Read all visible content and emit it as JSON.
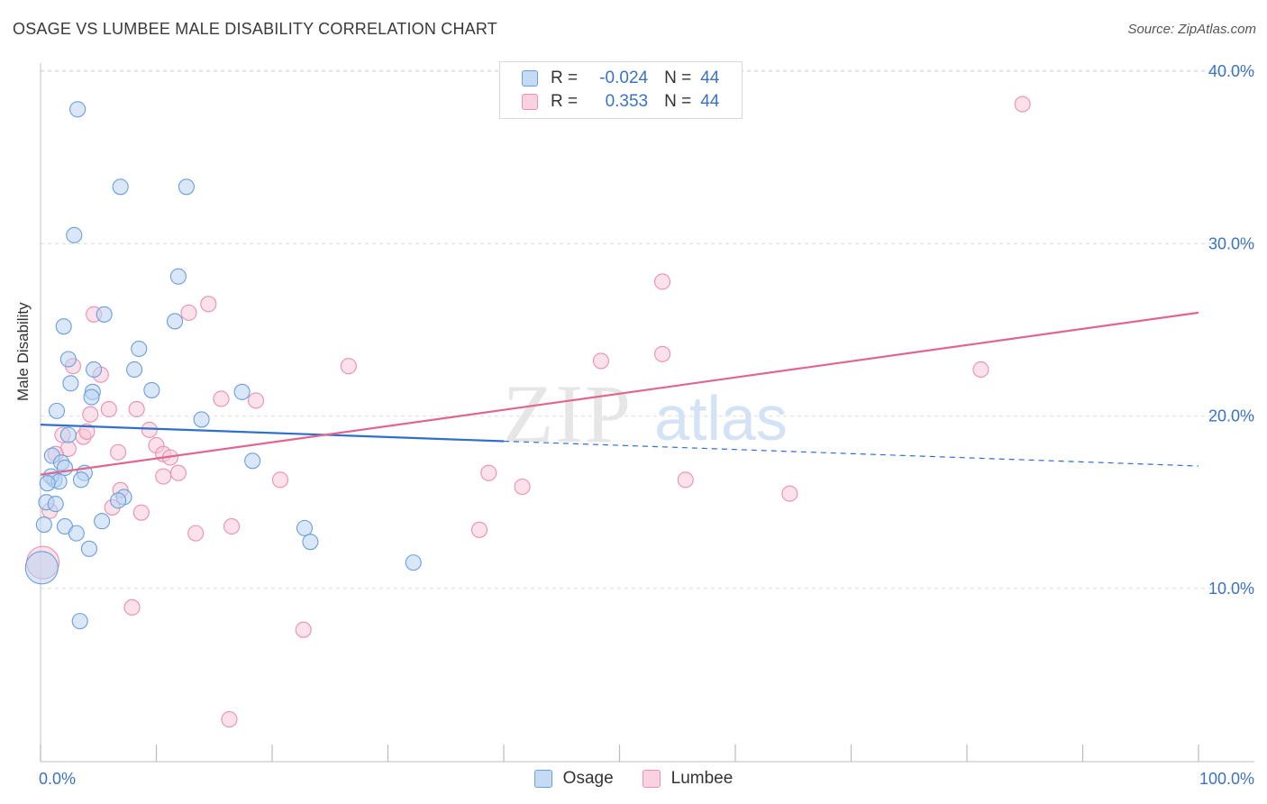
{
  "title": "OSAGE VS LUMBEE MALE DISABILITY CORRELATION CHART",
  "source": "Source: ZipAtlas.com",
  "watermark": {
    "zip": "ZIP",
    "atlas": "atlas"
  },
  "legend": {
    "rows": [
      {
        "r_label": "R =",
        "r_value": "-0.024",
        "n_label": "N =",
        "n_value": "44"
      },
      {
        "r_label": "R =",
        "r_value": "0.353",
        "n_label": "N =",
        "n_value": "44"
      }
    ]
  },
  "colors": {
    "osage_fill": "#b9d3f2",
    "osage_stroke": "#6a9fdc",
    "osage_line": "#2f6fcf",
    "lumbee_fill": "#f8c8d8",
    "lumbee_stroke": "#ec8fae",
    "lumbee_line": "#e06690",
    "tick_label": "#3b73c4",
    "grid": "#dddddd"
  },
  "chart_data": {
    "type": "scatter",
    "xlabel": "",
    "ylabel": "Male Disability",
    "xlim": [
      0,
      100
    ],
    "ylim": [
      0,
      40
    ],
    "x_tick_labels": [
      {
        "value": 0,
        "label": "0.0%"
      },
      {
        "value": 100,
        "label": "100.0%"
      }
    ],
    "y_tick_labels": [
      {
        "value": 10,
        "label": "10.0%"
      },
      {
        "value": 20,
        "label": "20.0%"
      },
      {
        "value": 30,
        "label": "30.0%"
      },
      {
        "value": 40,
        "label": "40.0%"
      }
    ],
    "grid": true,
    "legend_position": "top-center",
    "series": [
      {
        "name": "Osage",
        "trend": {
          "x0": 0,
          "y0": 19.5,
          "x1": 100,
          "y1": 17.1,
          "solid_until": 40
        },
        "points": [
          [
            3.2,
            37.8
          ],
          [
            6.9,
            33.3
          ],
          [
            12.6,
            33.3
          ],
          [
            2.9,
            30.5
          ],
          [
            11.9,
            28.1
          ],
          [
            5.5,
            25.9
          ],
          [
            2.0,
            25.2
          ],
          [
            11.6,
            25.5
          ],
          [
            8.5,
            23.9
          ],
          [
            2.4,
            23.3
          ],
          [
            8.1,
            22.7
          ],
          [
            4.6,
            22.7
          ],
          [
            2.6,
            21.9
          ],
          [
            9.6,
            21.5
          ],
          [
            17.4,
            21.4
          ],
          [
            4.5,
            21.4
          ],
          [
            4.4,
            21.1
          ],
          [
            1.4,
            20.3
          ],
          [
            13.9,
            19.8
          ],
          [
            2.4,
            18.9
          ],
          [
            1.0,
            17.7
          ],
          [
            18.3,
            17.4
          ],
          [
            1.8,
            17.3
          ],
          [
            2.1,
            17.0
          ],
          [
            3.8,
            16.7
          ],
          [
            3.5,
            16.3
          ],
          [
            1.2,
            16.3
          ],
          [
            0.9,
            16.5
          ],
          [
            1.6,
            16.2
          ],
          [
            0.6,
            16.1
          ],
          [
            7.2,
            15.3
          ],
          [
            6.7,
            15.1
          ],
          [
            0.5,
            15.0
          ],
          [
            1.3,
            14.9
          ],
          [
            5.3,
            13.9
          ],
          [
            0.3,
            13.7
          ],
          [
            2.1,
            13.6
          ],
          [
            22.8,
            13.5
          ],
          [
            3.1,
            13.2
          ],
          [
            23.3,
            12.7
          ],
          [
            4.2,
            12.3
          ],
          [
            32.2,
            11.5
          ],
          [
            0.1,
            11.2
          ],
          [
            3.4,
            8.1
          ]
        ]
      },
      {
        "name": "Lumbee",
        "trend": {
          "x0": 0,
          "y0": 16.6,
          "x1": 100,
          "y1": 26.0
        },
        "points": [
          [
            84.8,
            38.1
          ],
          [
            53.7,
            27.8
          ],
          [
            14.5,
            26.5
          ],
          [
            12.8,
            26.0
          ],
          [
            4.6,
            25.9
          ],
          [
            53.7,
            23.6
          ],
          [
            48.4,
            23.2
          ],
          [
            26.6,
            22.9
          ],
          [
            81.2,
            22.7
          ],
          [
            2.8,
            22.9
          ],
          [
            5.2,
            22.4
          ],
          [
            15.6,
            21.0
          ],
          [
            18.6,
            20.9
          ],
          [
            5.9,
            20.4
          ],
          [
            8.3,
            20.4
          ],
          [
            4.3,
            20.1
          ],
          [
            9.4,
            19.2
          ],
          [
            1.9,
            18.9
          ],
          [
            3.7,
            18.8
          ],
          [
            4.0,
            19.1
          ],
          [
            10.0,
            18.3
          ],
          [
            2.4,
            18.1
          ],
          [
            6.7,
            17.9
          ],
          [
            1.3,
            17.8
          ],
          [
            10.6,
            17.8
          ],
          [
            11.2,
            17.6
          ],
          [
            11.9,
            16.7
          ],
          [
            38.7,
            16.7
          ],
          [
            10.6,
            16.5
          ],
          [
            20.7,
            16.3
          ],
          [
            55.7,
            16.3
          ],
          [
            41.6,
            15.9
          ],
          [
            6.9,
            15.7
          ],
          [
            64.7,
            15.5
          ],
          [
            0.8,
            14.5
          ],
          [
            8.7,
            14.4
          ],
          [
            6.2,
            14.7
          ],
          [
            16.5,
            13.6
          ],
          [
            37.9,
            13.4
          ],
          [
            13.4,
            13.2
          ],
          [
            0.2,
            11.5
          ],
          [
            7.9,
            8.9
          ],
          [
            22.7,
            7.6
          ],
          [
            16.3,
            2.4
          ]
        ]
      }
    ]
  },
  "bottom_legend": [
    "Osage",
    "Lumbee"
  ]
}
